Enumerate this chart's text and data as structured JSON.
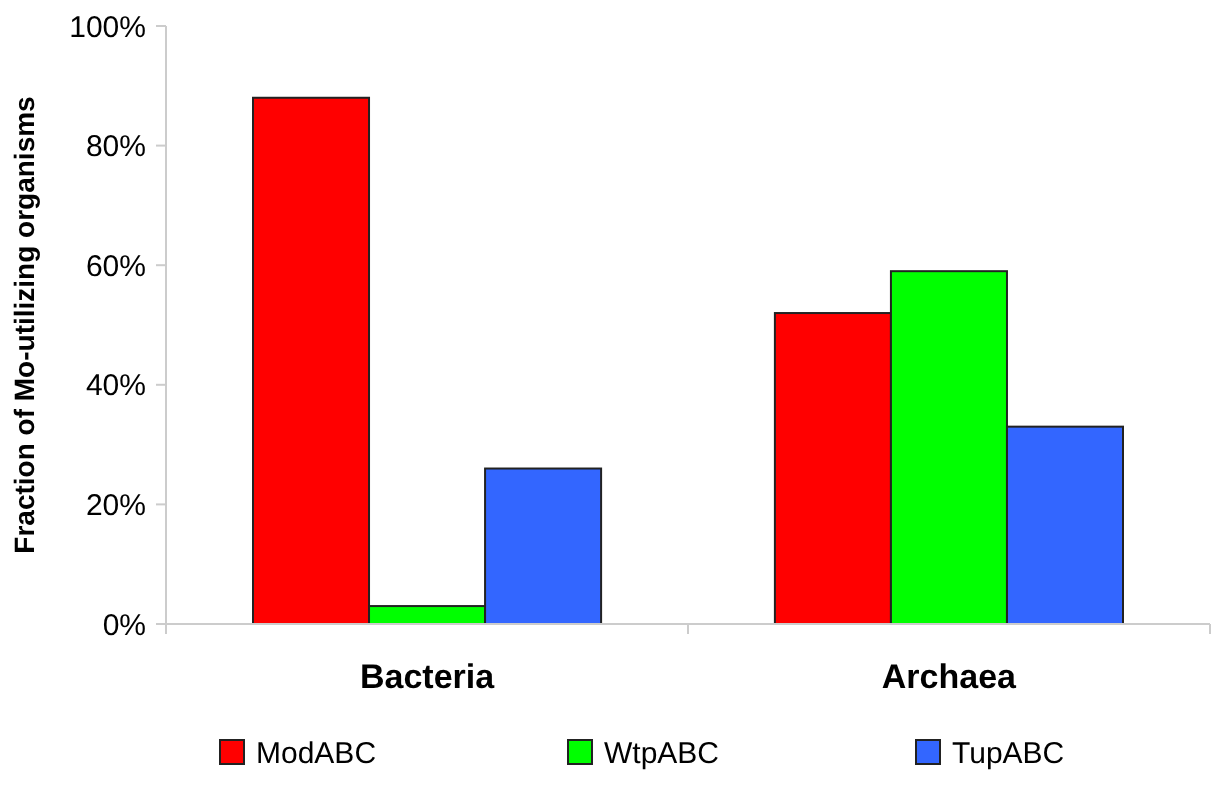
{
  "chart_data": {
    "type": "bar",
    "ylabel": "Fraction of Mo-utilizing organisms",
    "categories": [
      "Bacteria",
      "Archaea"
    ],
    "series": [
      {
        "name": "ModABC",
        "color": "#ff0000",
        "values": [
          88,
          52
        ]
      },
      {
        "name": "WtpABC",
        "color": "#00ff00",
        "values": [
          3,
          59
        ]
      },
      {
        "name": "TupABC",
        "color": "#3366ff",
        "values": [
          26,
          33
        ]
      }
    ],
    "ylim": [
      0,
      100
    ],
    "yticks": [
      {
        "value": 0,
        "label": "0%"
      },
      {
        "value": 20,
        "label": "20%"
      },
      {
        "value": 40,
        "label": "40%"
      },
      {
        "value": 60,
        "label": "60%"
      },
      {
        "value": 80,
        "label": "80%"
      },
      {
        "value": 100,
        "label": "100%"
      }
    ],
    "grid": false,
    "legend": "bottom"
  }
}
